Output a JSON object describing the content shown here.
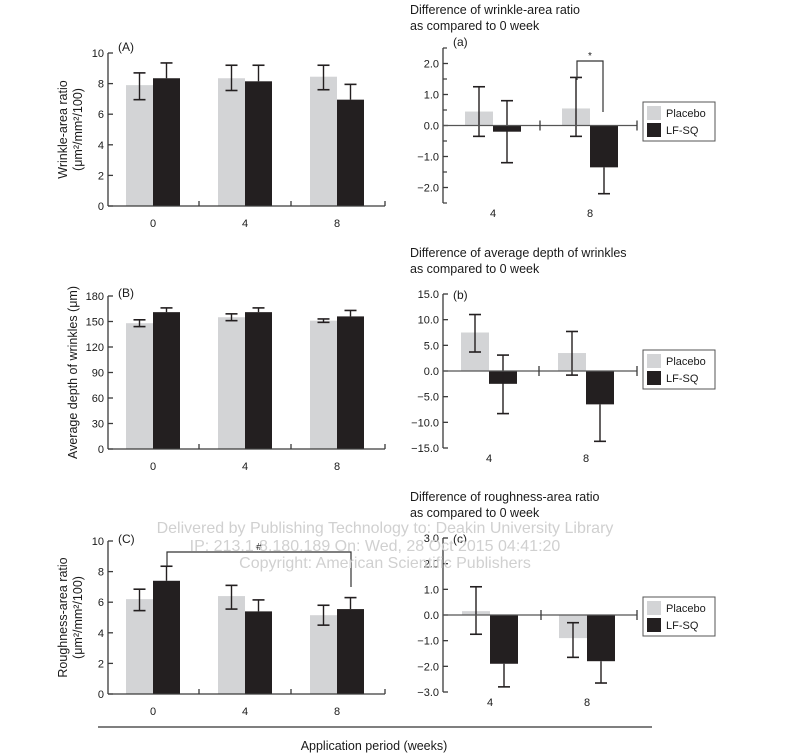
{
  "colors": {
    "placebo": "#d3d4d6",
    "lfsq": "#231f20",
    "axis": "#3a3a3a",
    "zero_line": "#555555"
  },
  "legend": {
    "placebo": "Placebo",
    "lfsq": "LF-SQ"
  },
  "xlabel": "Application period (weeks)",
  "watermark": [
    "Delivered by Publishing Technology to: Deakin University Library",
    "IP: 213.1·8.180.189 On: Wed, 28 Oct 2015 04:41:20",
    "Copyright: American Scientific Publishers"
  ],
  "chart_data": [
    {
      "id": "A",
      "type": "bar",
      "panel_tag": "(A)",
      "title": "",
      "ylabel_lines": [
        "Wrinkle-area ratio",
        "(μm²/mm²/100)"
      ],
      "categories": [
        "0",
        "4",
        "8"
      ],
      "ylim": [
        0,
        10
      ],
      "yticks": [
        0,
        2,
        4,
        6,
        8,
        10
      ],
      "ytick_labels": [
        "0",
        "2",
        "4",
        "6",
        "8",
        "10"
      ],
      "series": [
        {
          "name": "Placebo",
          "values": [
            7.9,
            8.35,
            8.45
          ],
          "err_low": [
            6.95,
            7.55,
            7.6
          ],
          "err_high": [
            8.7,
            9.2,
            9.2
          ]
        },
        {
          "name": "LF-SQ",
          "values": [
            8.35,
            8.15,
            6.95
          ],
          "err_low": [
            null,
            null,
            null
          ],
          "err_high": [
            9.35,
            9.2,
            7.95
          ]
        }
      ],
      "annotations": []
    },
    {
      "id": "a",
      "type": "bar",
      "panel_tag": "(a)",
      "title_lines": [
        "Difference of wrinkle-area ratio",
        "as compared to 0 week"
      ],
      "categories": [
        "4",
        "8"
      ],
      "ylim": [
        -2.5,
        2.5
      ],
      "yticks": [
        -2.0,
        -1.0,
        0.0,
        1.0,
        2.0
      ],
      "ytick_labels": [
        "−2.0",
        "−1.0",
        "0.0",
        "1.0",
        "2.0"
      ],
      "minor_ticks": [
        -2.5,
        -1.5,
        -0.5,
        0.5,
        1.5,
        2.5
      ],
      "series": [
        {
          "name": "Placebo",
          "values": [
            0.45,
            0.55
          ],
          "err_low": [
            -0.35,
            -0.35
          ],
          "err_high": [
            1.25,
            1.55
          ]
        },
        {
          "name": "LF-SQ",
          "values": [
            -0.2,
            -1.35
          ],
          "err_low": [
            -1.2,
            -2.2
          ],
          "err_high": [
            0.8,
            null
          ]
        }
      ],
      "annotations": [
        {
          "type": "bracket",
          "label": "*",
          "between": [
            "Placebo@8",
            "LF-SQ@8"
          ]
        }
      ],
      "legend": "right"
    },
    {
      "id": "B",
      "type": "bar",
      "panel_tag": "(B)",
      "title": "",
      "ylabel_lines": [
        "Average depth of wrinkles (μm)"
      ],
      "categories": [
        "0",
        "4",
        "8"
      ],
      "ylim": [
        0,
        180
      ],
      "yticks": [
        0,
        30,
        60,
        90,
        120,
        150,
        180
      ],
      "ytick_labels": [
        "0",
        "30",
        "60",
        "90",
        "120",
        "150",
        "180"
      ],
      "series": [
        {
          "name": "Placebo",
          "values": [
            148,
            155,
            151
          ],
          "err_low": [
            144,
            151,
            149
          ],
          "err_high": [
            152,
            159,
            153
          ]
        },
        {
          "name": "LF-SQ",
          "values": [
            161,
            161,
            156
          ],
          "err_low": [
            null,
            null,
            null
          ],
          "err_high": [
            166,
            166,
            163
          ]
        }
      ],
      "annotations": []
    },
    {
      "id": "b",
      "type": "bar",
      "panel_tag": "(b)",
      "title_lines": [
        "Difference of average depth of wrinkles",
        "as compared to 0 week"
      ],
      "categories": [
        "4",
        "8"
      ],
      "ylim": [
        -15,
        15
      ],
      "yticks": [
        -15,
        -10,
        -5,
        0,
        5,
        10,
        15
      ],
      "ytick_labels": [
        "−15.0",
        "−10.0",
        "−5.0",
        "0.0",
        "5.0",
        "10.0",
        "15.0"
      ],
      "minor_ticks": [],
      "series": [
        {
          "name": "Placebo",
          "values": [
            7.5,
            3.5
          ],
          "err_low": [
            3.7,
            -0.8
          ],
          "err_high": [
            11.0,
            7.7
          ]
        },
        {
          "name": "LF-SQ",
          "values": [
            -2.5,
            -6.5
          ],
          "err_low": [
            -8.3,
            -13.7
          ],
          "err_high": [
            3.1,
            null
          ]
        }
      ],
      "annotations": [],
      "legend": "right"
    },
    {
      "id": "C",
      "type": "bar",
      "panel_tag": "(C)",
      "title": "",
      "ylabel_lines": [
        "Roughness-area ratio",
        "(μm²/mm²/100)"
      ],
      "categories": [
        "0",
        "4",
        "8"
      ],
      "ylim": [
        0,
        10
      ],
      "yticks": [
        0,
        2,
        4,
        6,
        8,
        10
      ],
      "ytick_labels": [
        "0",
        "2",
        "4",
        "6",
        "8",
        "10"
      ],
      "series": [
        {
          "name": "Placebo",
          "values": [
            6.2,
            6.4,
            5.15
          ],
          "err_low": [
            5.45,
            5.55,
            4.5
          ],
          "err_high": [
            6.85,
            7.1,
            5.8
          ]
        },
        {
          "name": "LF-SQ",
          "values": [
            7.4,
            5.4,
            5.55
          ],
          "err_low": [
            null,
            null,
            null
          ],
          "err_high": [
            8.35,
            6.15,
            6.3
          ]
        }
      ],
      "annotations": [
        {
          "type": "bracket",
          "label": "#",
          "between": [
            "LF-SQ@0",
            "LF-SQ@8"
          ]
        }
      ]
    },
    {
      "id": "c",
      "type": "bar",
      "panel_tag": "(c)",
      "title_lines": [
        "Difference of roughness-area ratio",
        "as compared to 0 week"
      ],
      "categories": [
        "4",
        "8"
      ],
      "ylim": [
        -3,
        3
      ],
      "yticks": [
        -3,
        -2,
        -1,
        0,
        1,
        2,
        3
      ],
      "ytick_labels": [
        "−3.0",
        "−2.0",
        "−1.0",
        "0.0",
        "1.0",
        "2.0",
        "3.0"
      ],
      "minor_ticks": [],
      "series": [
        {
          "name": "Placebo",
          "values": [
            0.15,
            -0.9
          ],
          "err_low": [
            -0.75,
            -1.65
          ],
          "err_high": [
            1.1,
            -0.3
          ]
        },
        {
          "name": "LF-SQ",
          "values": [
            -1.9,
            -1.8
          ],
          "err_low": [
            -2.8,
            -2.65
          ],
          "err_high": [
            null,
            null
          ]
        }
      ],
      "annotations": [],
      "legend": "right"
    }
  ]
}
